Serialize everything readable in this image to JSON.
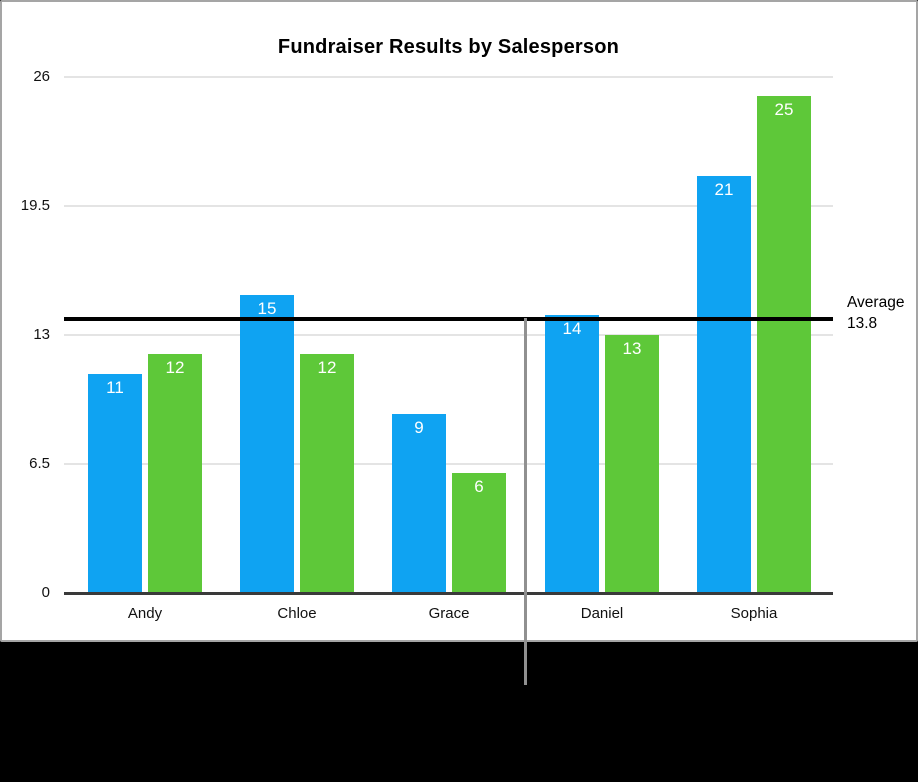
{
  "colors": {
    "panel_border": "#a5a5a5",
    "panel_background": "#ffffff",
    "outer_background": "#000000",
    "gridline": "#e4e4e4",
    "axis_line": "#3a3a3a",
    "bar_value_text": "#ffffff",
    "average_line": "#000000",
    "pointer_line": "#909090",
    "tick_text": "#111111"
  },
  "chart_data": {
    "type": "bar",
    "title": "Fundraiser Results by Salesperson",
    "categories": [
      "Andy",
      "Chloe",
      "Grace",
      "Daniel",
      "Sophia"
    ],
    "series": [
      {
        "color_name": "blue",
        "color": "#0fa3f2",
        "values": [
          11,
          15,
          9,
          14,
          21
        ]
      },
      {
        "color_name": "green",
        "color": "#5ec839",
        "values": [
          12,
          12,
          6,
          13,
          25
        ]
      }
    ],
    "y_ticks": [
      "0",
      "6.5",
      "13",
      "19.5",
      "26"
    ],
    "ylim": [
      0,
      26
    ],
    "grid": true,
    "legend": "none",
    "value_labels_position": "inside-top",
    "average_line": {
      "value": 13.8,
      "label_line1": "Average",
      "label_line2": "13.8"
    }
  }
}
